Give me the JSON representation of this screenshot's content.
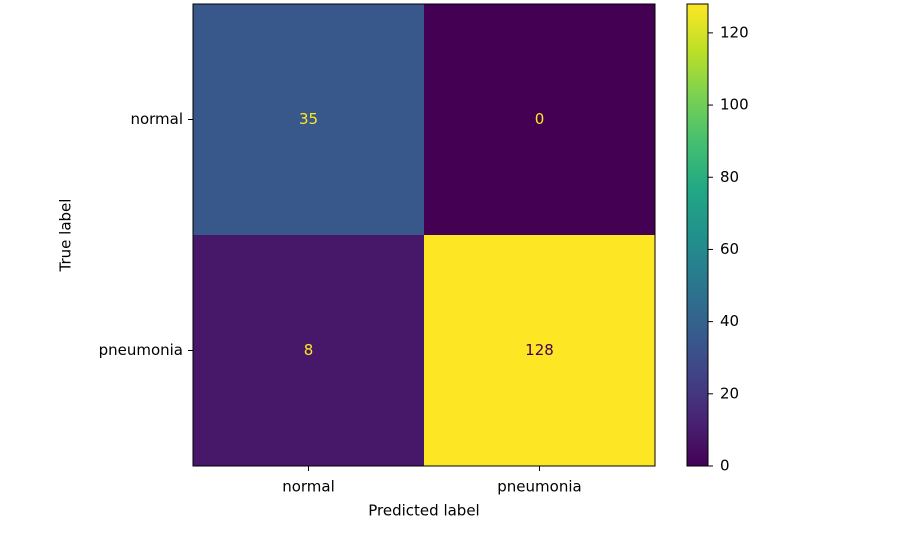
{
  "chart_data": {
    "type": "heatmap",
    "xlabel": "Predicted label",
    "ylabel": "True label",
    "x_categories": [
      "normal",
      "pneumonia"
    ],
    "y_categories": [
      "normal",
      "pneumonia"
    ],
    "values": [
      [
        35,
        0
      ],
      [
        8,
        128
      ]
    ],
    "clim": [
      0,
      128
    ],
    "colorbar_ticks": [
      0,
      20,
      40,
      60,
      80,
      100,
      120
    ],
    "colorscale": [
      "#440154",
      "#482475",
      "#414487",
      "#355f8d",
      "#2a788e",
      "#21918c",
      "#22a884",
      "#44bf70",
      "#7ad151",
      "#bddf26",
      "#fde725"
    ]
  }
}
